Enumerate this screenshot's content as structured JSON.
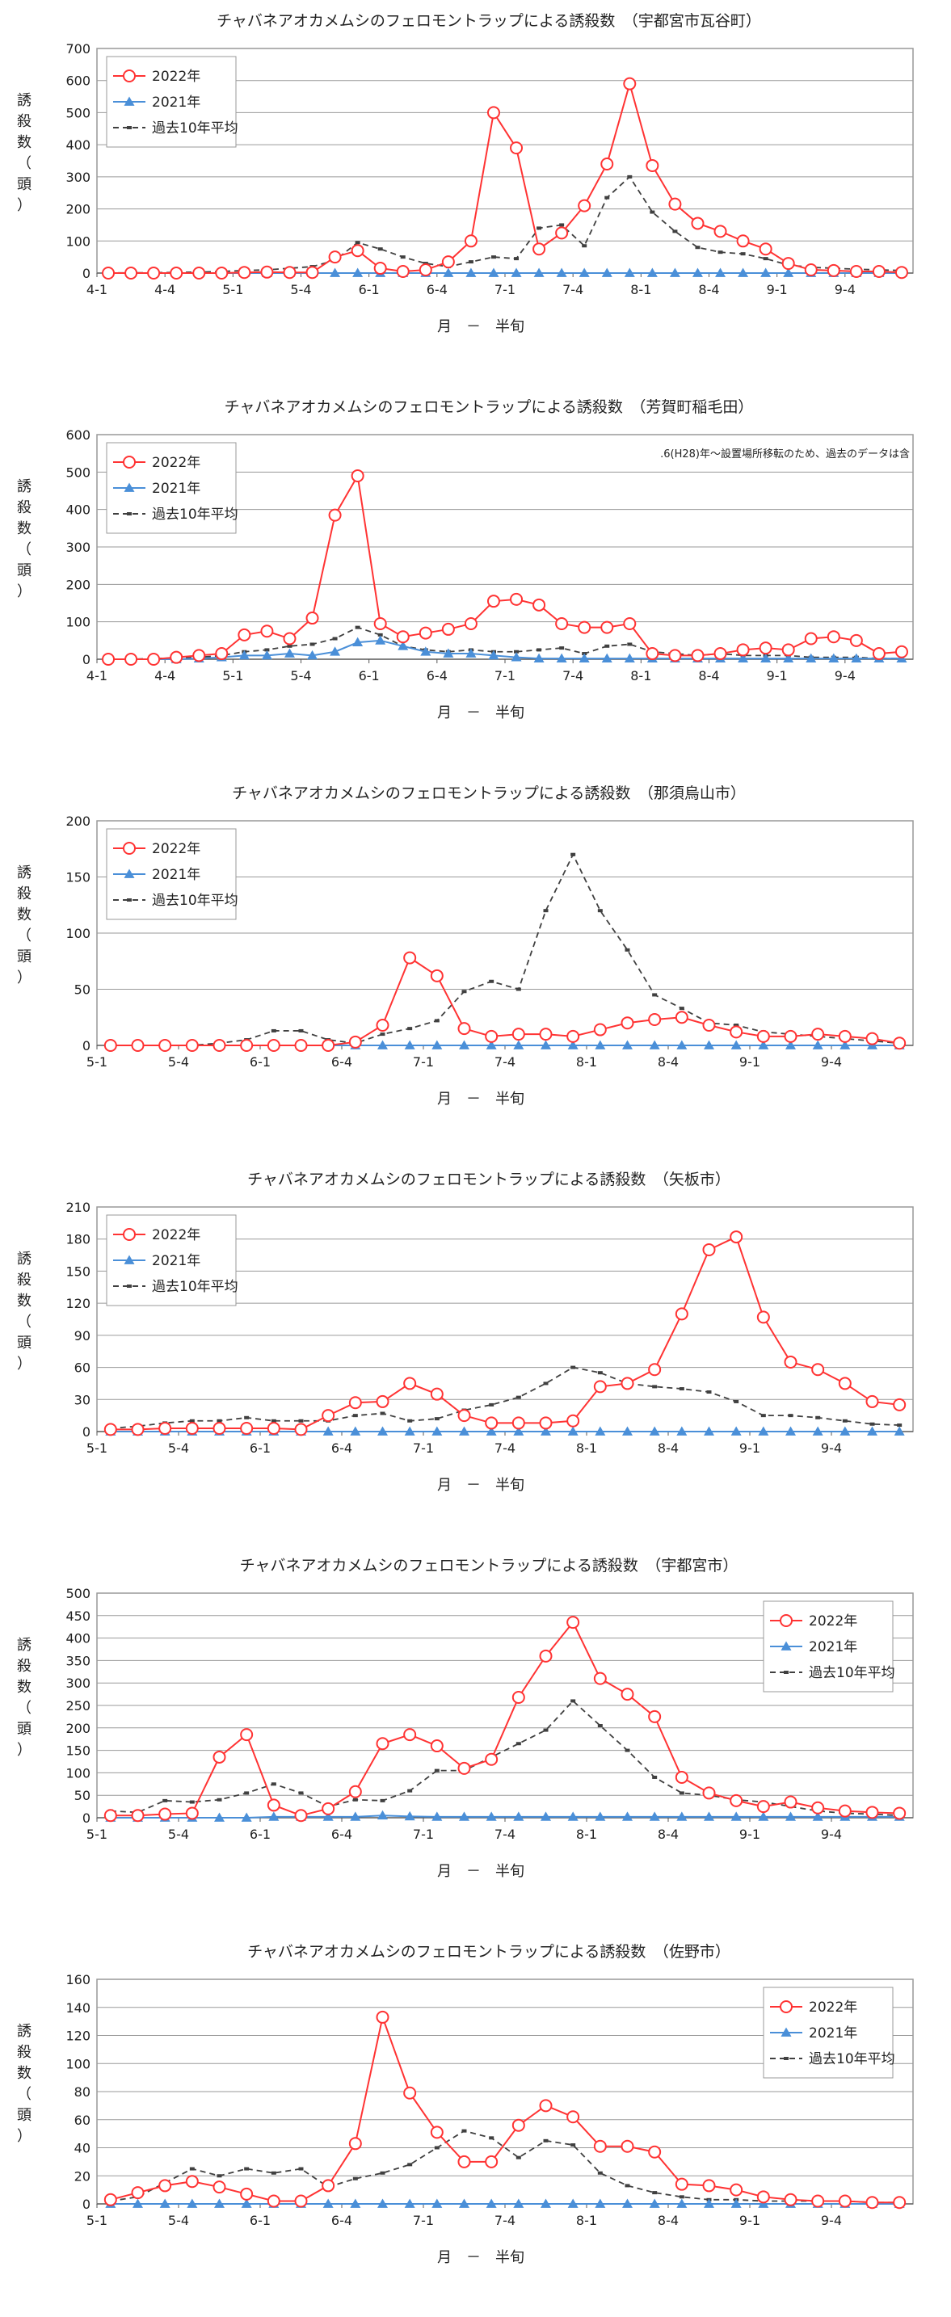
{
  "colors": {
    "s2022": "#ff3333",
    "s2021": "#4a8fd8",
    "avg": "#404040"
  },
  "legend_labels": [
    "2022年",
    "2021年",
    "過去10年平均"
  ],
  "ylabel": [
    "誘",
    "殺",
    "数",
    "（",
    "頭",
    "）"
  ],
  "xlabel": "月　－　半旬",
  "charts": [
    {
      "title": "チャバネアオカメムシのフェロモントラップによる誘殺数　（宇都宮市瓦谷町）",
      "ylim": [
        0,
        700
      ],
      "ystep": 100,
      "legend_position": "top-left",
      "x_tick_labels": [
        "4-1",
        "4-4",
        "5-1",
        "5-4",
        "6-1",
        "6-4",
        "7-1",
        "7-4",
        "8-1",
        "8-4",
        "9-1",
        "9-4"
      ],
      "first_period": "4-1",
      "periods": 36,
      "series": [
        {
          "name": "2022年",
          "values": [
            0,
            0,
            0,
            0,
            0,
            0,
            2,
            3,
            2,
            2,
            50,
            70,
            15,
            5,
            10,
            35,
            100,
            500,
            390,
            75,
            125,
            210,
            340,
            590,
            335,
            215,
            155,
            130,
            100,
            75,
            30,
            10,
            8,
            5,
            5,
            2
          ]
        },
        {
          "name": "2021年",
          "values": [
            0,
            0,
            0,
            0,
            0,
            0,
            0,
            0,
            0,
            0,
            0,
            0,
            0,
            0,
            0,
            0,
            0,
            0,
            0,
            0,
            0,
            0,
            0,
            0,
            0,
            0,
            0,
            0,
            0,
            0,
            0,
            0,
            0,
            0,
            0,
            0
          ]
        },
        {
          "name": "過去10年平均",
          "values": [
            0,
            1,
            1,
            2,
            3,
            5,
            8,
            10,
            15,
            20,
            40,
            95,
            75,
            50,
            30,
            20,
            35,
            50,
            45,
            140,
            150,
            85,
            235,
            300,
            190,
            130,
            80,
            65,
            60,
            45,
            25,
            18,
            15,
            12,
            10,
            8
          ]
        }
      ]
    },
    {
      "title": "チャバネアオカメムシのフェロモントラップによる誘殺数　（芳賀町稲毛田）",
      "ylim": [
        0,
        600
      ],
      "ystep": 100,
      "legend_position": "top-left",
      "note": ".6(H28)年～設置場所移転のため、過去のデータは含",
      "x_tick_labels": [
        "4-1",
        "4-4",
        "5-1",
        "5-4",
        "6-1",
        "6-4",
        "7-1",
        "7-4",
        "8-1",
        "8-4",
        "9-1",
        "9-4"
      ],
      "first_period": "4-1",
      "periods": 36,
      "series": [
        {
          "name": "2022年",
          "values": [
            0,
            0,
            0,
            5,
            10,
            15,
            65,
            75,
            55,
            110,
            385,
            490,
            95,
            60,
            70,
            80,
            95,
            155,
            160,
            145,
            95,
            85,
            85,
            95,
            15,
            10,
            10,
            15,
            25,
            30,
            25,
            55,
            60,
            50,
            15,
            20
          ]
        },
        {
          "name": "2021年",
          "values": [
            0,
            0,
            0,
            0,
            2,
            5,
            10,
            10,
            15,
            10,
            20,
            45,
            50,
            35,
            20,
            15,
            15,
            10,
            5,
            2,
            2,
            2,
            2,
            2,
            2,
            2,
            2,
            2,
            2,
            2,
            2,
            2,
            2,
            2,
            2,
            2
          ]
        },
        {
          "name": "過去10年平均",
          "values": [
            0,
            0,
            2,
            3,
            5,
            10,
            20,
            25,
            35,
            40,
            55,
            85,
            65,
            35,
            25,
            20,
            25,
            20,
            20,
            25,
            30,
            15,
            35,
            40,
            20,
            15,
            10,
            15,
            10,
            10,
            10,
            5,
            5,
            5,
            2,
            2
          ]
        }
      ]
    },
    {
      "title": "チャバネアオカメムシのフェロモントラップによる誘殺数　（那須烏山市）",
      "ylim": [
        0,
        200
      ],
      "ystep": 50,
      "legend_position": "top-left",
      "x_tick_labels": [
        "5-1",
        "5-4",
        "6-1",
        "6-4",
        "7-1",
        "7-4",
        "8-1",
        "8-4",
        "9-1",
        "9-4"
      ],
      "first_period": "5-1",
      "periods": 30,
      "series": [
        {
          "name": "2022年",
          "values": [
            0,
            0,
            0,
            0,
            0,
            0,
            0,
            0,
            0,
            3,
            18,
            78,
            62,
            15,
            8,
            10,
            10,
            8,
            14,
            20,
            23,
            25,
            18,
            12,
            8,
            8,
            10,
            8,
            6,
            2
          ]
        },
        {
          "name": "2021年",
          "values": [
            0,
            0,
            0,
            0,
            0,
            0,
            0,
            0,
            0,
            0,
            0,
            0,
            0,
            0,
            0,
            0,
            0,
            0,
            0,
            0,
            0,
            0,
            0,
            0,
            0,
            0,
            0,
            0,
            0,
            0
          ]
        },
        {
          "name": "過去10年平均",
          "values": [
            0,
            0,
            0,
            0,
            2,
            5,
            13,
            13,
            5,
            2,
            10,
            15,
            22,
            48,
            57,
            50,
            120,
            170,
            120,
            85,
            45,
            33,
            20,
            18,
            12,
            10,
            8,
            6,
            4,
            2
          ]
        }
      ]
    },
    {
      "title": "チャバネアオカメムシのフェロモントラップによる誘殺数　（矢板市）",
      "ylim": [
        0,
        210
      ],
      "ystep": 30,
      "legend_position": "top-left",
      "x_tick_labels": [
        "5-1",
        "5-4",
        "6-1",
        "6-4",
        "7-1",
        "7-4",
        "8-1",
        "8-4",
        "9-1",
        "9-4"
      ],
      "first_period": "5-1",
      "periods": 30,
      "series": [
        {
          "name": "2022年",
          "values": [
            2,
            2,
            3,
            3,
            3,
            3,
            3,
            2,
            15,
            27,
            28,
            45,
            35,
            15,
            8,
            8,
            8,
            10,
            42,
            45,
            58,
            110,
            170,
            182,
            107,
            65,
            58,
            45,
            28,
            25
          ]
        },
        {
          "name": "2021年",
          "values": [
            0,
            0,
            0,
            0,
            0,
            0,
            0,
            0,
            0,
            0,
            0,
            0,
            0,
            0,
            0,
            0,
            0,
            0,
            0,
            0,
            0,
            0,
            0,
            0,
            0,
            0,
            0,
            0,
            0,
            0
          ]
        },
        {
          "name": "過去10年平均",
          "values": [
            3,
            5,
            8,
            10,
            10,
            13,
            10,
            10,
            10,
            15,
            17,
            10,
            12,
            20,
            25,
            32,
            45,
            60,
            55,
            45,
            42,
            40,
            37,
            28,
            15,
            15,
            13,
            10,
            7,
            6
          ]
        }
      ]
    },
    {
      "title": "チャバネアオカメムシのフェロモントラップによる誘殺数　（宇都宮市）",
      "ylim": [
        0,
        500
      ],
      "ystep": 50,
      "legend_position": "top-right",
      "x_tick_labels": [
        "5-1",
        "5-4",
        "6-1",
        "6-4",
        "7-1",
        "7-4",
        "8-1",
        "8-4",
        "9-1",
        "9-4"
      ],
      "first_period": "5-1",
      "periods": 30,
      "series": [
        {
          "name": "2022年",
          "values": [
            5,
            5,
            8,
            10,
            135,
            185,
            28,
            5,
            20,
            58,
            165,
            185,
            160,
            110,
            130,
            268,
            360,
            435,
            310,
            275,
            225,
            90,
            55,
            38,
            25,
            35,
            22,
            15,
            12,
            10
          ]
        },
        {
          "name": "2021年",
          "values": [
            0,
            0,
            0,
            0,
            0,
            0,
            2,
            2,
            2,
            2,
            5,
            3,
            2,
            2,
            2,
            2,
            2,
            2,
            2,
            2,
            2,
            2,
            2,
            2,
            2,
            2,
            2,
            2,
            2,
            2
          ]
        },
        {
          "name": "過去10年平均",
          "values": [
            15,
            12,
            38,
            35,
            40,
            55,
            75,
            55,
            25,
            40,
            38,
            60,
            105,
            105,
            135,
            165,
            195,
            260,
            205,
            150,
            90,
            55,
            50,
            40,
            35,
            25,
            15,
            10,
            8,
            5
          ]
        }
      ]
    },
    {
      "title": "チャバネアオカメムシのフェロモントラップによる誘殺数　（佐野市）",
      "ylim": [
        0,
        160
      ],
      "ystep": 20,
      "legend_position": "top-right",
      "x_tick_labels": [
        "5-1",
        "5-4",
        "6-1",
        "6-4",
        "7-1",
        "7-4",
        "8-1",
        "8-4",
        "9-1",
        "9-4"
      ],
      "first_period": "5-1",
      "periods": 30,
      "series": [
        {
          "name": "2022年",
          "values": [
            3,
            8,
            13,
            16,
            12,
            7,
            2,
            2,
            13,
            43,
            133,
            79,
            51,
            30,
            30,
            56,
            70,
            62,
            41,
            41,
            37,
            14,
            13,
            10,
            5,
            3,
            2,
            2,
            1,
            1
          ]
        },
        {
          "name": "2021年",
          "values": [
            0,
            0,
            0,
            0,
            0,
            0,
            0,
            0,
            0,
            0,
            0,
            0,
            0,
            0,
            0,
            0,
            0,
            0,
            0,
            0,
            0,
            0,
            0,
            0,
            0,
            0,
            0,
            0,
            0,
            0
          ]
        },
        {
          "name": "過去10年平均",
          "values": [
            2,
            5,
            15,
            25,
            20,
            25,
            22,
            25,
            12,
            18,
            22,
            28,
            40,
            52,
            47,
            33,
            45,
            42,
            22,
            13,
            8,
            5,
            3,
            3,
            2,
            2,
            2,
            2,
            1,
            1
          ]
        }
      ]
    }
  ]
}
